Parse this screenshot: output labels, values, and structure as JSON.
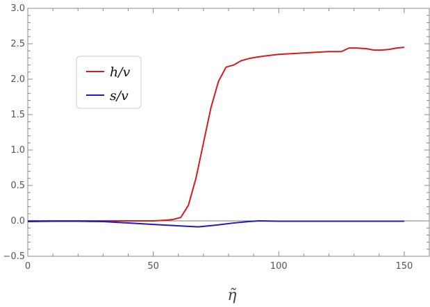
{
  "chart_data": {
    "type": "line",
    "xlabel": "η̃",
    "ylabel": "",
    "xlim": [
      0,
      160
    ],
    "ylim": [
      -0.5,
      3.0
    ],
    "x_ticks": [
      "0",
      "50",
      "100",
      "150"
    ],
    "y_ticks": [
      "−0.5",
      "0.0",
      "0.5",
      "1.0",
      "1.5",
      "2.0",
      "2.5",
      "3.0"
    ],
    "grid": false,
    "legend_position": "upper-left",
    "series": [
      {
        "name": "h/v",
        "color": "#d71920",
        "points": [
          [
            0,
            0.0
          ],
          [
            10,
            0.0
          ],
          [
            20,
            0.0
          ],
          [
            30,
            0.0
          ],
          [
            40,
            0.0
          ],
          [
            50,
            0.0
          ],
          [
            55,
            0.01
          ],
          [
            58,
            0.02
          ],
          [
            61,
            0.05
          ],
          [
            64,
            0.22
          ],
          [
            67,
            0.6
          ],
          [
            70,
            1.1
          ],
          [
            73,
            1.6
          ],
          [
            76,
            1.97
          ],
          [
            79,
            2.17
          ],
          [
            82,
            2.2
          ],
          [
            85,
            2.26
          ],
          [
            88,
            2.29
          ],
          [
            91,
            2.31
          ],
          [
            95,
            2.33
          ],
          [
            100,
            2.35
          ],
          [
            105,
            2.36
          ],
          [
            110,
            2.37
          ],
          [
            115,
            2.38
          ],
          [
            120,
            2.39
          ],
          [
            125,
            2.39
          ],
          [
            128,
            2.44
          ],
          [
            131,
            2.44
          ],
          [
            135,
            2.43
          ],
          [
            138,
            2.41
          ],
          [
            141,
            2.41
          ],
          [
            144,
            2.42
          ],
          [
            147,
            2.44
          ],
          [
            150,
            2.45
          ]
        ]
      },
      {
        "name": "s/v",
        "color": "#1a1acc",
        "points": [
          [
            0,
            -0.01
          ],
          [
            10,
            -0.005
          ],
          [
            20,
            -0.005
          ],
          [
            30,
            -0.01
          ],
          [
            40,
            -0.03
          ],
          [
            50,
            -0.05
          ],
          [
            60,
            -0.07
          ],
          [
            68,
            -0.085
          ],
          [
            75,
            -0.06
          ],
          [
            82,
            -0.03
          ],
          [
            88,
            -0.01
          ],
          [
            92,
            0.0
          ],
          [
            100,
            -0.005
          ],
          [
            110,
            -0.005
          ],
          [
            120,
            -0.005
          ],
          [
            130,
            -0.005
          ],
          [
            140,
            -0.005
          ],
          [
            150,
            -0.005
          ]
        ]
      }
    ]
  }
}
